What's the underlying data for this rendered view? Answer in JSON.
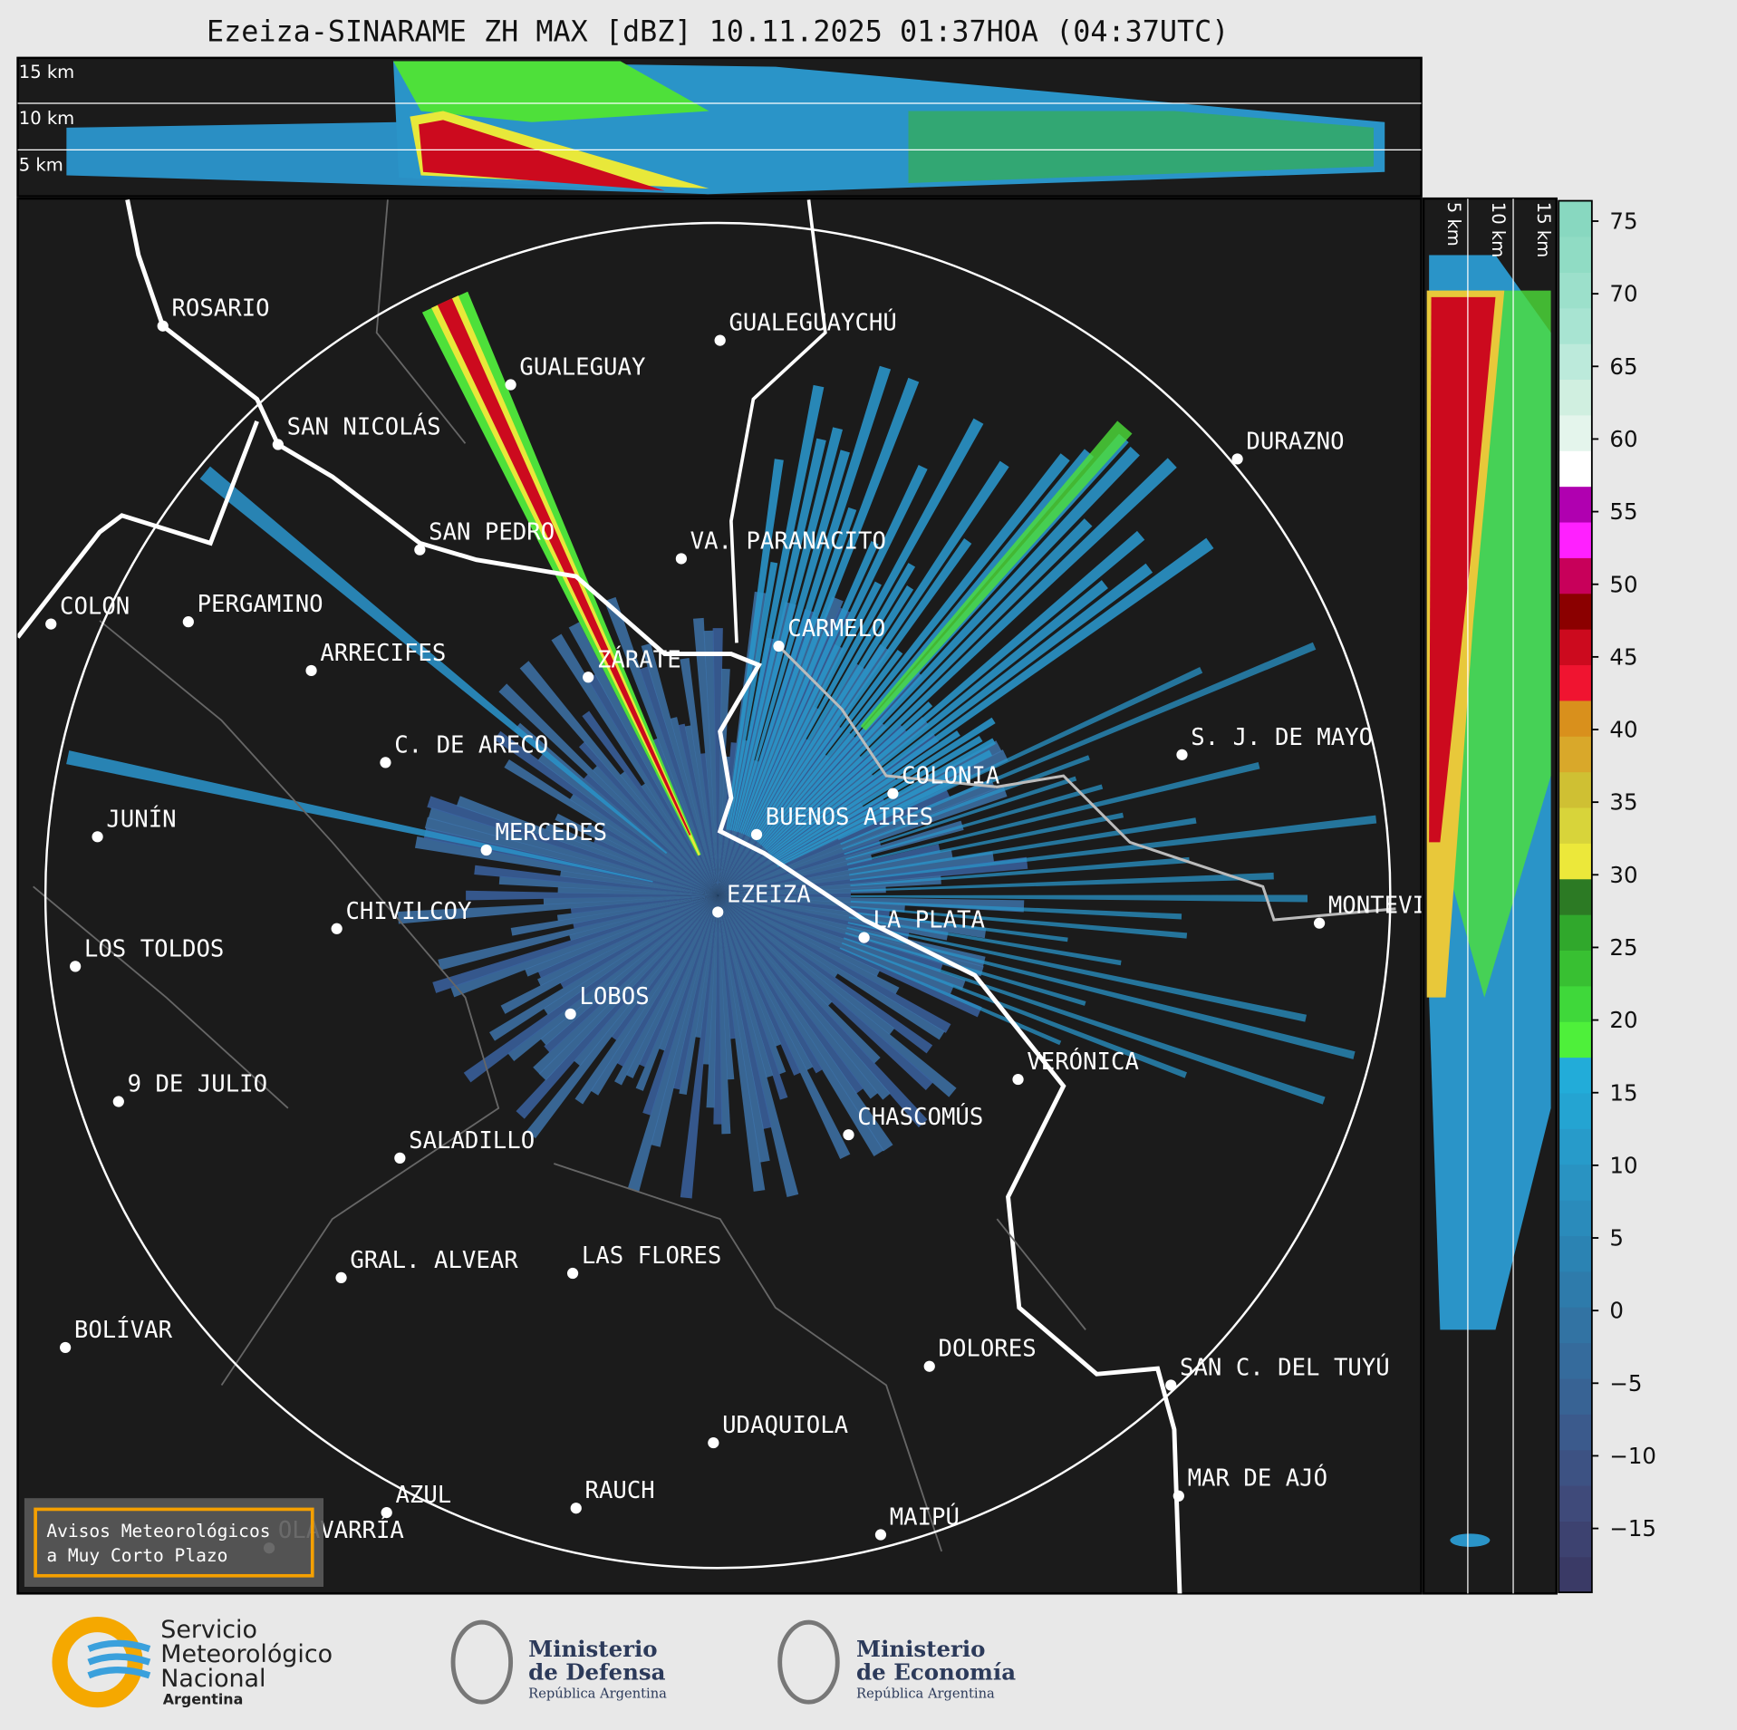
{
  "title": "Ezeiza-SINARAME ZH MAX [dBZ] 10.11.2025 01:37HOA (04:37UTC)",
  "top_panel": {
    "height_labels": [
      "15 km",
      "10 km",
      "5 km"
    ]
  },
  "side_panel": {
    "height_labels": [
      "5 km",
      "10 km",
      "15 km"
    ]
  },
  "cities": [
    "ROSARIO",
    "GUALEGUAYCHÚ",
    "GUALEGUAY",
    "SAN NICOLÁS",
    "DURAZNO",
    "SAN PEDRO",
    "VA. PARANACITO",
    "COLON",
    "PERGAMINO",
    "CARMELO",
    "ARRECIFES",
    "ZÁRATE",
    "C. DE ARECO",
    "S. J. DE MAYO",
    "COLONIA",
    "JUNÍN",
    "BUENOS AIRES",
    "MERCEDES",
    "EZEIZA",
    "MONTEVIDEO",
    "CHIVILCOY",
    "LA PLATA",
    "LOS TOLDOS",
    "LOBOS",
    "VERÓNICA",
    "9 DE JULIO",
    "CHASCOMÚS",
    "SALADILLO",
    "GRAL. ALVEAR",
    "LAS FLORES",
    "BOLÍVAR",
    "DOLORES",
    "SAN C. DEL TUYÚ",
    "UDAQUIOLA",
    "MAR DE AJÓ",
    "AZUL",
    "RAUCH",
    "OLAVARRÍA",
    "MAIPÚ"
  ],
  "notice": [
    "Avisos Meteorológicos",
    "a Muy Corto Plazo"
  ],
  "colorbar": {
    "lim": [
      -19.4,
      76.4
    ],
    "ticks": [
      75,
      70,
      65,
      60,
      55,
      50,
      45,
      40,
      35,
      30,
      25,
      20,
      15,
      10,
      5,
      0,
      {
        "value": -5,
        "label": "−5"
      },
      {
        "value": -10,
        "label": "−10"
      },
      {
        "value": -15,
        "label": "−15"
      }
    ],
    "colors": [
      "#3a3a66",
      "#3d4270",
      "#3f4a7a",
      "#3d5283",
      "#3b5a8c",
      "#386394",
      "#356b9c",
      "#3273a3",
      "#2e7bab",
      "#2b83b3",
      "#2a8bbb",
      "#2993c2",
      "#279bca",
      "#24a4d2",
      "#22acd9",
      "#4ef03a",
      "#3fd83a",
      "#38c032",
      "#30a82c",
      "#2c7a24",
      "#ece83a",
      "#d8d43a",
      "#cfc033",
      "#d9a82a",
      "#d9901c",
      "#f01430",
      "#cc0a1e",
      "#8b0000",
      "#c8005a",
      "#ff20ff",
      "#b000b0",
      "#ffffff",
      "#e4f5ec",
      "#d0efe0",
      "#bceadb",
      "#a8e4d2",
      "#9ce0cb",
      "#90dcc4",
      "#88d8c0"
    ]
  },
  "footer": {
    "smn": [
      "Servicio",
      "Meteorológico",
      "Nacional",
      "Argentina"
    ],
    "defensa": [
      "Ministerio",
      "de Defensa",
      "República Argentina"
    ],
    "economia": [
      "Ministerio",
      "de Economía",
      "República Argentina"
    ]
  }
}
